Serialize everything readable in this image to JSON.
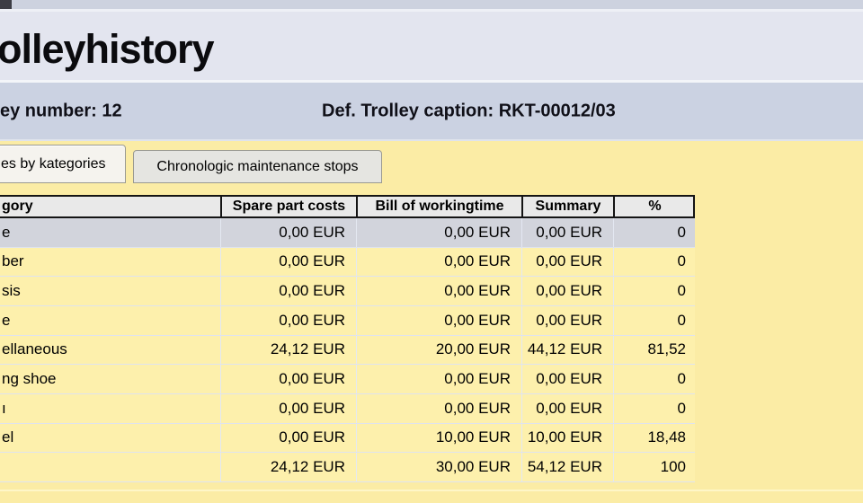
{
  "window": {
    "title_fragment": "olleyhistory",
    "info": {
      "trolley_number_text": "ey number: 12",
      "caption_text": "Def. Trolley caption: RKT-00012/03"
    },
    "tabs": [
      {
        "label": "es by kategories",
        "active": true
      },
      {
        "label": "Chronologic maintenance stops",
        "active": false
      }
    ]
  },
  "table": {
    "headers": {
      "category": "gory",
      "spare": "Spare part costs",
      "bill": "Bill of workingtime",
      "summary": "Summary",
      "percent": "%"
    },
    "selected_row_index": 0,
    "rows": [
      {
        "category": "e",
        "spare": "0,00 EUR",
        "bill": "0,00 EUR",
        "summary": "0,00 EUR",
        "percent": "0"
      },
      {
        "category": "ber",
        "spare": "0,00 EUR",
        "bill": "0,00 EUR",
        "summary": "0,00 EUR",
        "percent": "0"
      },
      {
        "category": "sis",
        "spare": "0,00 EUR",
        "bill": "0,00 EUR",
        "summary": "0,00 EUR",
        "percent": "0"
      },
      {
        "category": "e",
        "spare": "0,00 EUR",
        "bill": "0,00 EUR",
        "summary": "0,00 EUR",
        "percent": "0"
      },
      {
        "category": "ellaneous",
        "spare": "24,12 EUR",
        "bill": "20,00 EUR",
        "summary": "44,12 EUR",
        "percent": "81,52"
      },
      {
        "category": "ng shoe",
        "spare": "0,00 EUR",
        "bill": "0,00 EUR",
        "summary": "0,00 EUR",
        "percent": "0"
      },
      {
        "category": "ı",
        "spare": "0,00 EUR",
        "bill": "0,00 EUR",
        "summary": "0,00 EUR",
        "percent": "0"
      },
      {
        "category": "el",
        "spare": "0,00 EUR",
        "bill": "10,00 EUR",
        "summary": "10,00 EUR",
        "percent": "18,48"
      },
      {
        "category": "",
        "spare": "24,12 EUR",
        "bill": "30,00 EUR",
        "summary": "54,12 EUR",
        "percent": "100"
      }
    ]
  },
  "colors": {
    "panel_yellow": "#fbeca5",
    "row_yellow": "#fdf0ac",
    "selected_row": "#d2d4dc",
    "info_band_blue": "#cbd2e2",
    "title_band": "#e3e5ef",
    "header_gray": "#e9e9e9",
    "active_tab": "#f5f3ee",
    "inactive_tab": "#e5e5e1"
  }
}
